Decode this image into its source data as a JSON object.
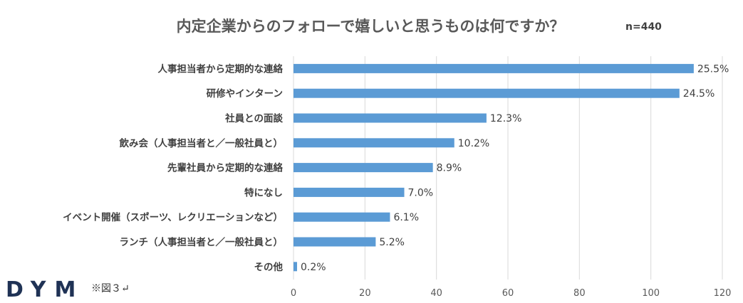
{
  "chart_data": {
    "type": "bar",
    "orientation": "horizontal",
    "title": "内定企業からのフォローで嬉しいと思うものは何ですか？",
    "sample_note": "n=440",
    "categories": [
      "人事担当者から定期的な連絡",
      "研修やインターン",
      "社員との面談",
      "飲み会（人事担当者と／一般社員と）",
      "先輩社員から定期的な連絡",
      "特になし",
      "イベント開催（スポーツ、レクリエーションなど）",
      "ランチ（人事担当者と／一般社員と）",
      "その他"
    ],
    "values": [
      112,
      108,
      54,
      45,
      39,
      31,
      27,
      23,
      1
    ],
    "data_labels": [
      "25.5%",
      "24.5%",
      "12.3%",
      "10.2%",
      "8.9%",
      "7.0%",
      "6.1%",
      "5.2%",
      "0.2%"
    ],
    "xlim": [
      0,
      120
    ],
    "xticks": [
      0,
      20,
      40,
      60,
      80,
      100,
      120
    ],
    "xtick_labels": [
      "0",
      "20",
      "40",
      "60",
      "80",
      "100",
      "120"
    ],
    "grid": true,
    "bar_color": "#5b9bd5",
    "xlabel": "",
    "ylabel": ""
  },
  "branding": {
    "logo": "DYM",
    "figure_note": "※図３↵"
  }
}
